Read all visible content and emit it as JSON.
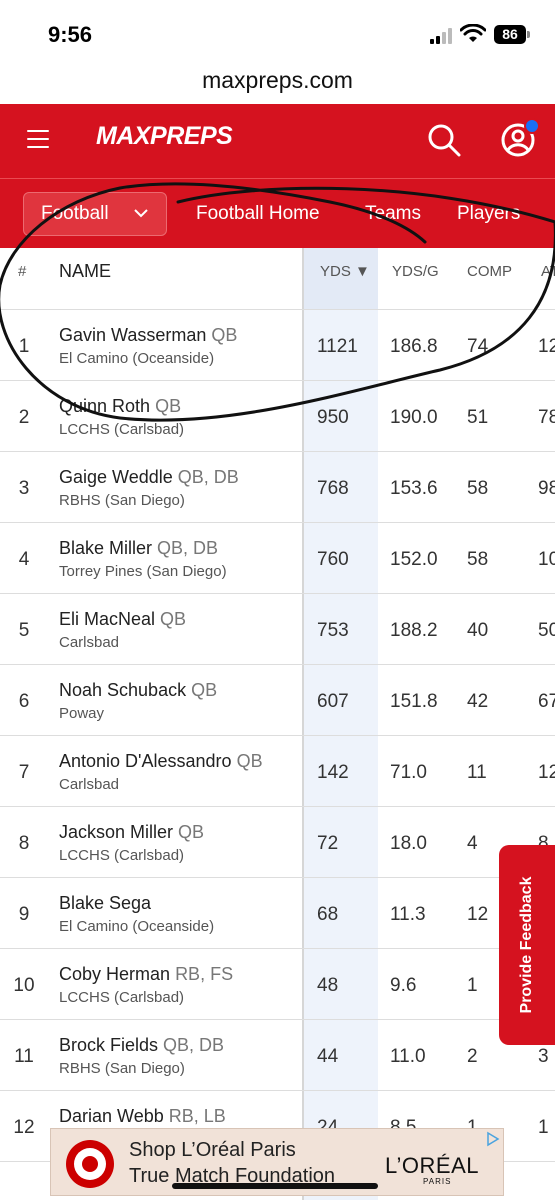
{
  "status_bar": {
    "time": "9:56",
    "battery": "86"
  },
  "url": "maxpreps.com",
  "header": {
    "logo": "MAXPREPS"
  },
  "subnav": {
    "sport": "Football",
    "links": [
      "Football Home",
      "Teams",
      "Players"
    ]
  },
  "table": {
    "headers": {
      "rank": "#",
      "name": "NAME",
      "yds": "YDS ▼",
      "ydsg": "YDS/G",
      "comp": "COMP",
      "att": "AT"
    },
    "rows": [
      {
        "rank": "1",
        "name": "Gavin Wasserman",
        "pos": "QB",
        "school": "El Camino (Oceanside)",
        "yds": "1121",
        "ydsg": "186.8",
        "comp": "74",
        "att": "12"
      },
      {
        "rank": "2",
        "name": "Quinn Roth",
        "pos": "QB",
        "school": "LCCHS (Carlsbad)",
        "yds": "950",
        "ydsg": "190.0",
        "comp": "51",
        "att": "78"
      },
      {
        "rank": "3",
        "name": "Gaige Weddle",
        "pos": "QB, DB",
        "school": "RBHS (San Diego)",
        "yds": "768",
        "ydsg": "153.6",
        "comp": "58",
        "att": "98"
      },
      {
        "rank": "4",
        "name": "Blake Miller",
        "pos": "QB, DB",
        "school": "Torrey Pines (San Diego)",
        "yds": "760",
        "ydsg": "152.0",
        "comp": "58",
        "att": "10"
      },
      {
        "rank": "5",
        "name": "Eli MacNeal",
        "pos": "QB",
        "school": "Carlsbad",
        "yds": "753",
        "ydsg": "188.2",
        "comp": "40",
        "att": "50"
      },
      {
        "rank": "6",
        "name": "Noah Schuback",
        "pos": "QB",
        "school": "Poway",
        "yds": "607",
        "ydsg": "151.8",
        "comp": "42",
        "att": "67"
      },
      {
        "rank": "7",
        "name": "Antonio D'Alessandro",
        "pos": "QB",
        "school": "Carlsbad",
        "yds": "142",
        "ydsg": "71.0",
        "comp": "11",
        "att": "12"
      },
      {
        "rank": "8",
        "name": "Jackson Miller",
        "pos": "QB",
        "school": "LCCHS (Carlsbad)",
        "yds": "72",
        "ydsg": "18.0",
        "comp": "4",
        "att": "8"
      },
      {
        "rank": "9",
        "name": "Blake Sega",
        "pos": "",
        "school": "El Camino (Oceanside)",
        "yds": "68",
        "ydsg": "11.3",
        "comp": "12",
        "att": ""
      },
      {
        "rank": "10",
        "name": "Coby Herman",
        "pos": "RB, FS",
        "school": "LCCHS (Carlsbad)",
        "yds": "48",
        "ydsg": "9.6",
        "comp": "1",
        "att": ""
      },
      {
        "rank": "11",
        "name": "Brock Fields",
        "pos": "QB, DB",
        "school": "RBHS (San Diego)",
        "yds": "44",
        "ydsg": "11.0",
        "comp": "2",
        "att": "3"
      },
      {
        "rank": "12",
        "name": "Darian Webb",
        "pos": "RB, LB",
        "school": "",
        "yds": "24",
        "ydsg": "8.5",
        "comp": "1",
        "att": "1"
      }
    ]
  },
  "feedback_tab": "Provide Feedback",
  "ad": {
    "line1": "Shop L’Oréal Paris",
    "line2": "True Match Foundation",
    "brand": "L’ORÉAL",
    "brand_sub": "PARIS"
  },
  "colors": {
    "brand_red": "#d5121f",
    "notification": "#1a6ff5"
  }
}
